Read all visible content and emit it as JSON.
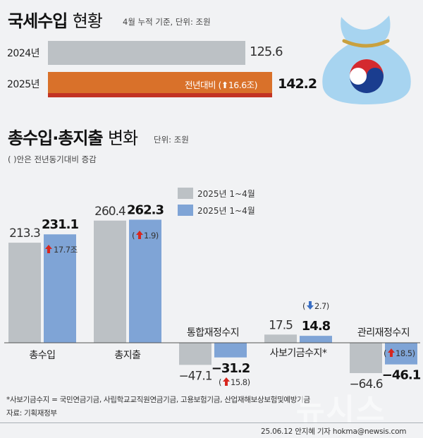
{
  "top": {
    "title_bold": "국세수입",
    "title_light": "현황",
    "unit": "4월 누적 기준, 단위: 조원",
    "rows": [
      {
        "year": "2024년",
        "value": "125.6"
      },
      {
        "year": "2025년",
        "value": "142.2",
        "note": "전년대비 (⬆16.6조)"
      }
    ]
  },
  "bottom": {
    "title_bold": "총수입·총지출",
    "title_light": "변화",
    "unit": "단위: 조원",
    "subnote": "( )안은 전년동기대비 증감"
  },
  "colors": {
    "gray": "#bcc1c5",
    "blue": "#7fa4d6",
    "orange": "#d9712a",
    "red": "#d7261e"
  },
  "chart_data": {
    "type": "bar",
    "legend": [
      "2025년 1~4월",
      "2025년 1~4월"
    ],
    "legend_position": "top-center",
    "categories": [
      "총수입",
      "총지출",
      "통합재정수지",
      "사보기금수지*",
      "관리재정수지"
    ],
    "series": [
      {
        "name": "2025년 1~4월",
        "values": [
          213.3,
          260.4,
          -47.1,
          17.5,
          -64.6
        ]
      },
      {
        "name": "2025년 1~4월",
        "values": [
          231.1,
          262.3,
          -31.2,
          14.8,
          -46.1
        ]
      }
    ],
    "labels_first": [
      "213.3",
      "260.4",
      "-47.1",
      "17.5",
      "-64.6"
    ],
    "labels_second": [
      "231.1",
      "262.3",
      "-31.2",
      "14.8",
      "-46.1"
    ],
    "changes": [
      "17.7조",
      "1.9",
      "15.8",
      "2.7",
      "18.5"
    ],
    "change_directions": [
      "up",
      "up",
      "up",
      "down",
      "up"
    ]
  },
  "footnote": "*사보기금수지 = 국민연금기금, 사립학교교직원연금기금, 고용보험기금, 산업재해보상보험및예방기금",
  "source": "자료: 기획재정부",
  "credit": "25.06.12 안지혜 기자 hokma@newsis.com",
  "watermark": "뉴시스"
}
